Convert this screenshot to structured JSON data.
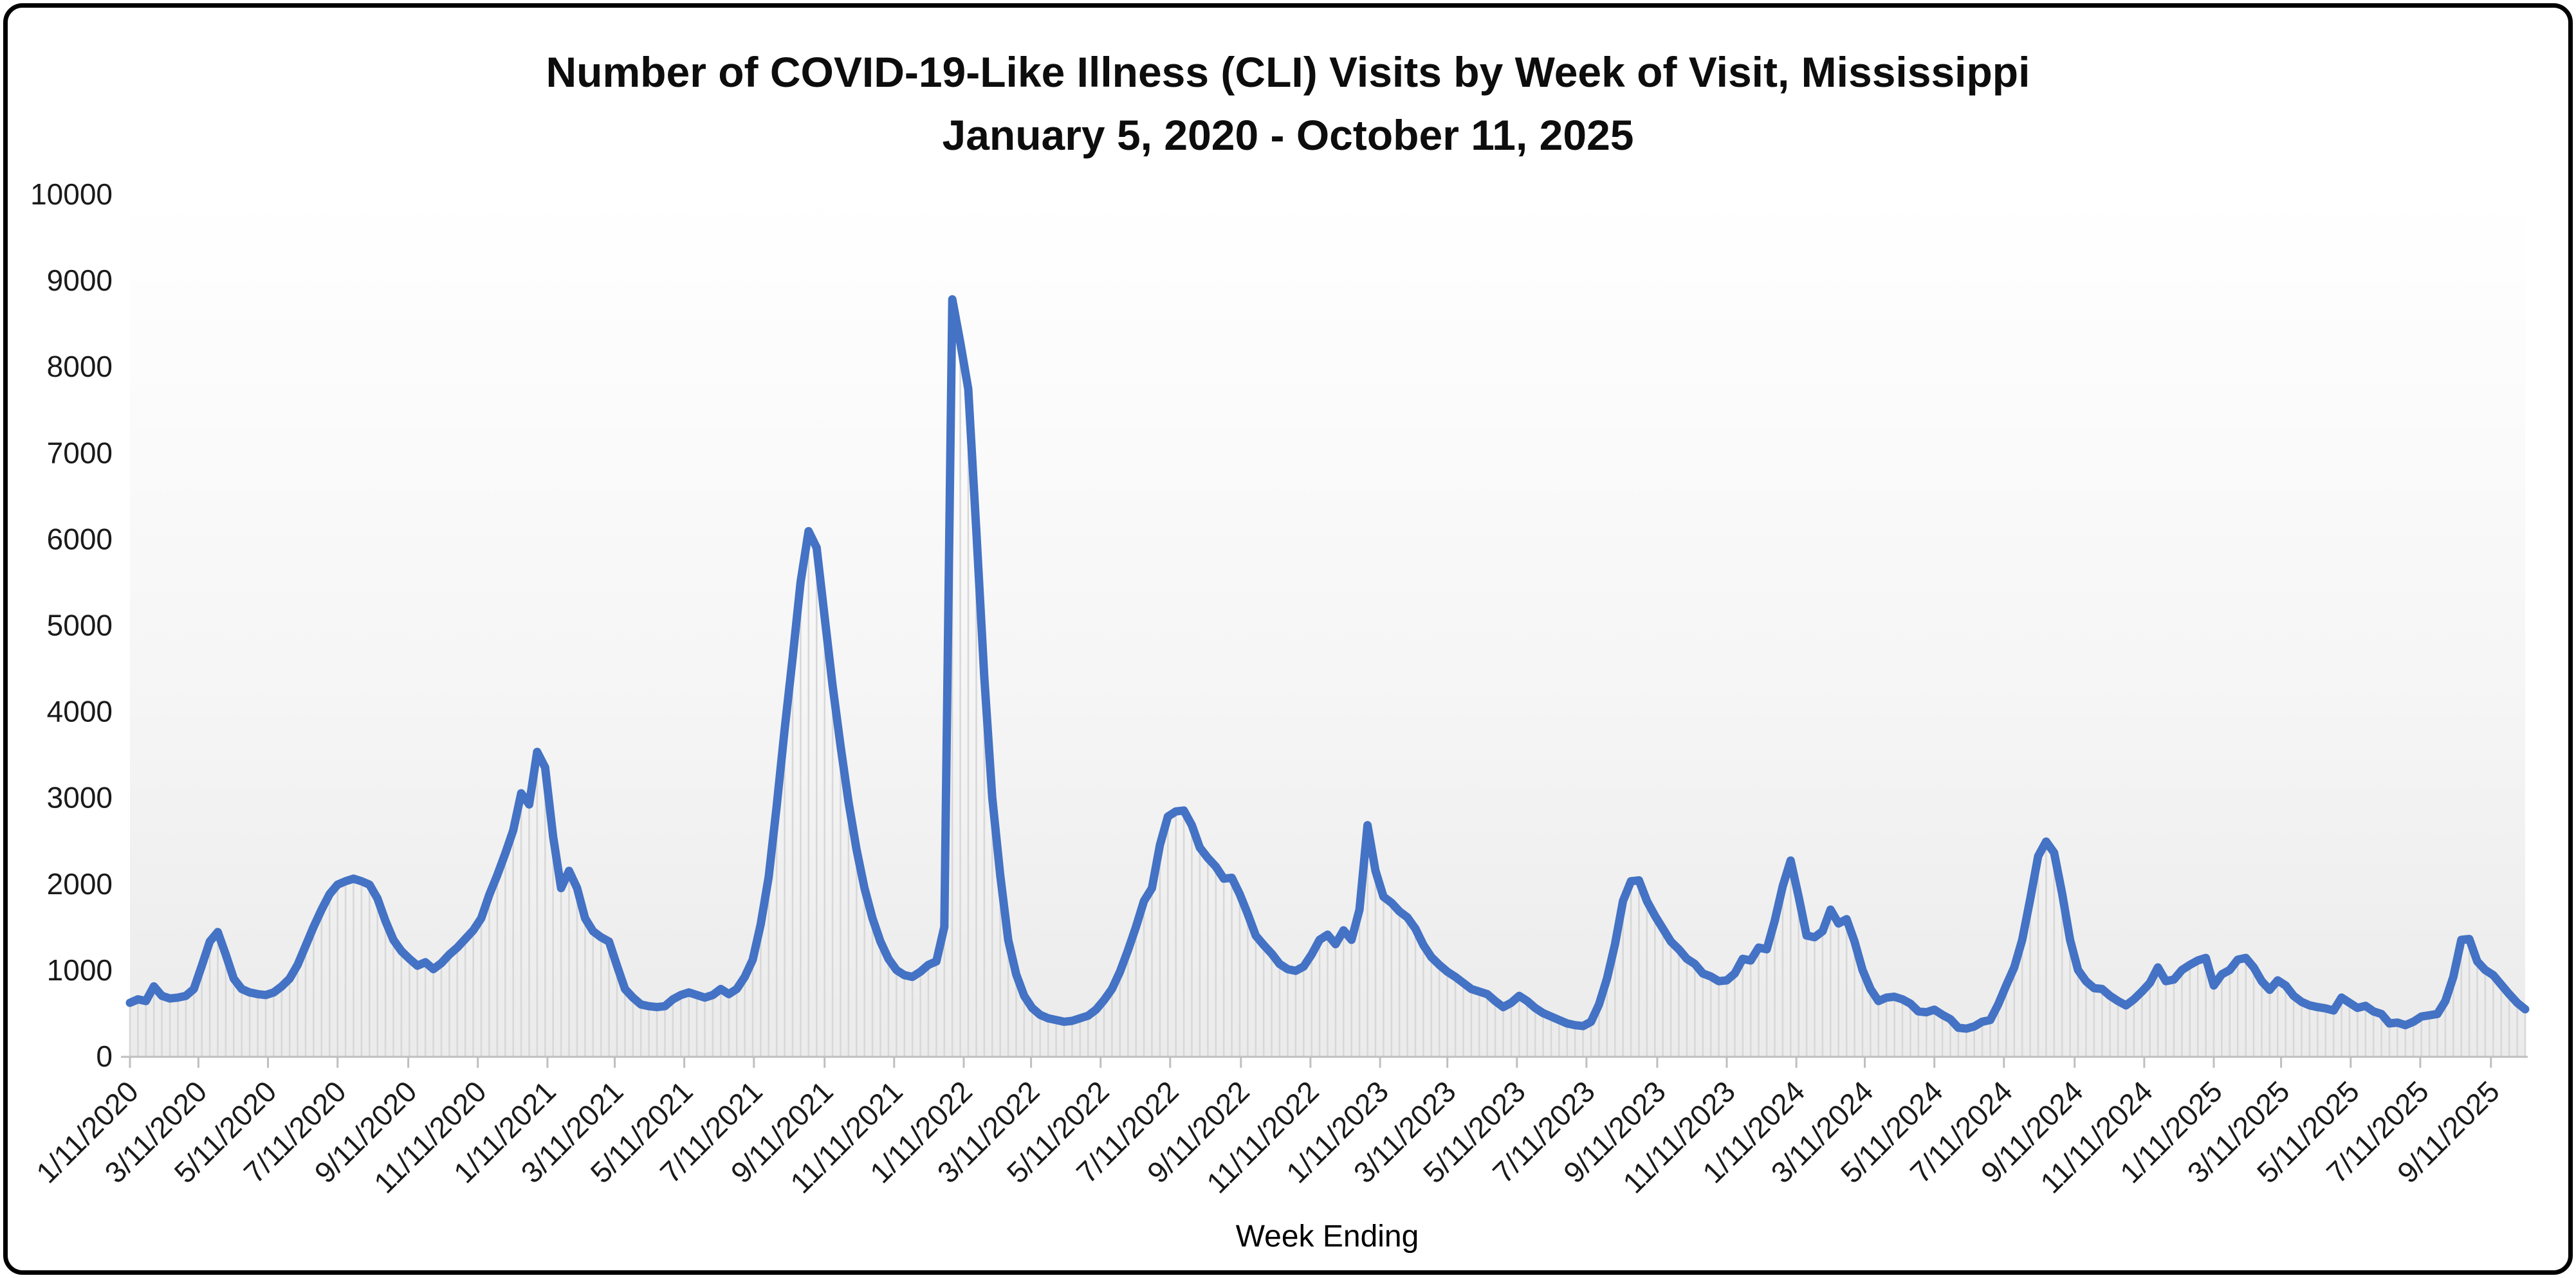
{
  "chart_data": {
    "type": "line",
    "title": "Number of COVID-19-Like Illness (CLI) Visits by Week of Visit, Mississippi",
    "subtitle": "January 5, 2020 - October 11, 2025",
    "xlabel": "Week Ending",
    "ylabel": "",
    "ylim": [
      0,
      10000
    ],
    "y_ticks": [
      0,
      1000,
      2000,
      3000,
      4000,
      5000,
      6000,
      7000,
      8000,
      9000,
      10000
    ],
    "x_start_week_ending": "1/11/2020",
    "x_end_week_ending": "10/11/2025",
    "week_interval_days": 7,
    "x_tick_labels": [
      "1/11/2020",
      "3/11/2020",
      "5/11/2020",
      "7/11/2020",
      "9/11/2020",
      "11/11/2020",
      "1/11/2021",
      "3/11/2021",
      "5/11/2021",
      "7/11/2021",
      "9/11/2021",
      "11/11/2021",
      "1/11/2022",
      "3/11/2022",
      "5/11/2022",
      "7/11/2022",
      "9/11/2022",
      "11/11/2022",
      "1/11/2023",
      "3/11/2023",
      "5/11/2023",
      "7/11/2023",
      "9/11/2023",
      "11/11/2023",
      "1/11/2024",
      "3/11/2024",
      "5/11/2024",
      "7/11/2024",
      "9/11/2024",
      "11/11/2024",
      "1/11/2025",
      "3/11/2025",
      "5/11/2025",
      "7/11/2025",
      "9/11/2025"
    ],
    "legend": "none",
    "grid": "none",
    "style": {
      "drop_lines_per_week": true,
      "marker": "none"
    },
    "series": [
      {
        "name": "CLI visits",
        "color": "#4472C4",
        "values": [
          620,
          660,
          640,
          810,
          700,
          670,
          680,
          700,
          780,
          1050,
          1330,
          1440,
          1180,
          900,
          780,
          740,
          720,
          710,
          740,
          810,
          900,
          1060,
          1280,
          1500,
          1700,
          1880,
          1990,
          2030,
          2060,
          2030,
          1990,
          1830,
          1570,
          1350,
          1220,
          1130,
          1050,
          1090,
          1010,
          1080,
          1180,
          1260,
          1360,
          1460,
          1600,
          1870,
          2100,
          2350,
          2620,
          3050,
          2920,
          3530,
          3350,
          2550,
          1950,
          2150,
          1950,
          1600,
          1450,
          1380,
          1330,
          1050,
          780,
          680,
          600,
          580,
          570,
          580,
          660,
          710,
          740,
          710,
          680,
          710,
          780,
          720,
          780,
          920,
          1120,
          1530,
          2080,
          2900,
          3790,
          4620,
          5500,
          6090,
          5900,
          5100,
          4300,
          3600,
          2950,
          2400,
          1950,
          1600,
          1330,
          1130,
          1000,
          940,
          920,
          980,
          1060,
          1100,
          1500,
          8780,
          8280,
          7740,
          6100,
          4400,
          3000,
          2100,
          1350,
          950,
          700,
          560,
          480,
          440,
          420,
          400,
          410,
          440,
          470,
          540,
          650,
          780,
          980,
          1230,
          1500,
          1800,
          1950,
          2450,
          2780,
          2840,
          2850,
          2680,
          2420,
          2300,
          2200,
          2060,
          2070,
          1880,
          1650,
          1400,
          1290,
          1190,
          1070,
          1010,
          990,
          1040,
          1180,
          1350,
          1410,
          1300,
          1460,
          1350,
          1700,
          2680,
          2150,
          1850,
          1780,
          1680,
          1610,
          1480,
          1290,
          1150,
          1060,
          980,
          920,
          850,
          780,
          750,
          720,
          640,
          570,
          620,
          700,
          640,
          560,
          500,
          460,
          420,
          380,
          360,
          350,
          400,
          600,
          900,
          1300,
          1800,
          2030,
          2040,
          1800,
          1630,
          1480,
          1330,
          1240,
          1130,
          1070,
          960,
          925,
          870,
          880,
          960,
          1130,
          1110,
          1260,
          1240,
          1570,
          1970,
          2270,
          1850,
          1400,
          1380,
          1450,
          1700,
          1540,
          1590,
          1330,
          1000,
          780,
          640,
          680,
          690,
          660,
          610,
          520,
          510,
          540,
          480,
          430,
          330,
          320,
          345,
          400,
          420,
          600,
          820,
          1030,
          1350,
          1820,
          2320,
          2490,
          2360,
          1890,
          1350,
          1000,
          870,
          790,
          780,
          700,
          640,
          590,
          660,
          750,
          850,
          1030,
          870,
          890,
          1000,
          1060,
          1110,
          1140,
          820,
          950,
          1000,
          1120,
          1140,
          1030,
          870,
          770,
          880,
          820,
          700,
          630,
          590,
          570,
          555,
          530,
          680,
          620,
          560,
          585,
          520,
          490,
          380,
          390,
          360,
          400,
          460,
          475,
          490,
          640,
          920,
          1350,
          1360,
          1100,
          1000,
          940,
          830,
          720,
          620,
          545
        ]
      }
    ]
  },
  "colors": {
    "line": "#4472C4",
    "drop_line": "#D8D8D8",
    "axis_line": "#BFBFBF",
    "tick_text": "#1A1A1A",
    "plot_bg_top": "#FFFFFF",
    "plot_bg_mid": "#F6F6F6",
    "plot_bg_bottom": "#EBEBEB",
    "frame_border": "#000000"
  }
}
